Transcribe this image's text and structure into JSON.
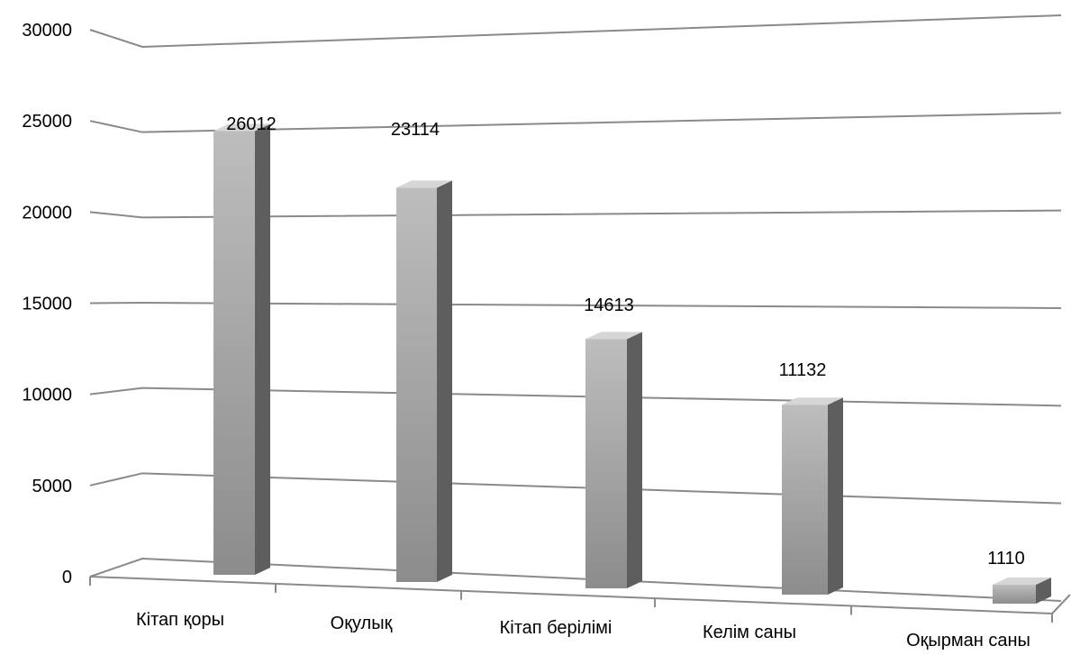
{
  "chart_data": {
    "type": "bar",
    "categories": [
      "Кітап қоры",
      "Оқулық",
      "Кітап берілімі",
      "Келім саны",
      "Оқырман саны"
    ],
    "values": [
      26012,
      23114,
      14613,
      11132,
      1110
    ],
    "data_labels": [
      "26012",
      "23114",
      "14613",
      "11132",
      "1110"
    ],
    "yticks": [
      0,
      5000,
      10000,
      15000,
      20000,
      25000,
      30000
    ],
    "ytick_labels": [
      "0",
      "5000",
      "10000",
      "15000",
      "20000",
      "25000",
      "30000"
    ],
    "ylim": [
      0,
      30000
    ],
    "grid": true,
    "legend": "none",
    "style": "3d-perspective",
    "colors": {
      "bar_front_light": "#bdbdbd",
      "bar_front_dark": "#8c8c8c",
      "bar_side": "#5e5e5e",
      "bar_top": "#d6d6d6",
      "gridline": "#8a8a8a"
    }
  }
}
